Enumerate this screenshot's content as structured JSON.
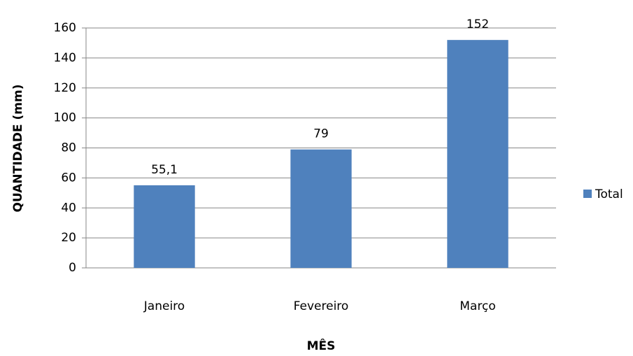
{
  "chart_data": {
    "type": "bar",
    "categories": [
      "Janeiro",
      "Fevereiro",
      "Março"
    ],
    "values": [
      55.1,
      79,
      152
    ],
    "value_labels": [
      "55,1",
      "79",
      "152"
    ],
    "series_name": "Total",
    "color": "#4f81bd",
    "xlabel": "MÊS",
    "ylabel": "QUANTIDADE (mm)",
    "ylim": [
      0,
      160
    ],
    "yticks": [
      0,
      20,
      40,
      60,
      80,
      100,
      120,
      140,
      160
    ],
    "grid": true,
    "legend": "right"
  }
}
